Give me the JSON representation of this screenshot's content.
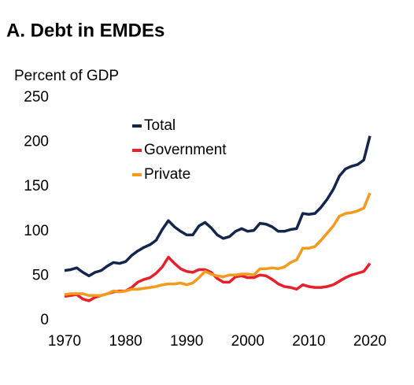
{
  "chart_data": {
    "type": "line",
    "title": "A. Debt in EMDEs",
    "ylabel": "Percent of GDP",
    "x": [
      1970,
      1971,
      1972,
      1973,
      1974,
      1975,
      1976,
      1977,
      1978,
      1979,
      1980,
      1981,
      1982,
      1983,
      1984,
      1985,
      1986,
      1987,
      1988,
      1989,
      1990,
      1991,
      1992,
      1993,
      1994,
      1995,
      1996,
      1997,
      1998,
      1999,
      2000,
      2001,
      2002,
      2003,
      2004,
      2005,
      2006,
      2007,
      2008,
      2009,
      2010,
      2011,
      2012,
      2013,
      2014,
      2015,
      2016,
      2017,
      2018,
      2019,
      2020
    ],
    "series": [
      {
        "name": "Total",
        "color": "#14264d",
        "values": [
          56,
          57,
          59,
          54,
          50,
          54,
          56,
          61,
          65,
          64,
          66,
          73,
          78,
          82,
          85,
          90,
          102,
          112,
          105,
          100,
          96,
          96,
          106,
          110,
          104,
          96,
          92,
          94,
          100,
          103,
          100,
          101,
          109,
          108,
          105,
          100,
          100,
          102,
          103,
          120,
          119,
          120,
          127,
          136,
          147,
          162,
          170,
          173,
          175,
          180,
          207
        ]
      },
      {
        "name": "Government",
        "color": "#e8202a",
        "values": [
          27,
          28,
          29,
          24,
          22,
          26,
          28,
          30,
          32,
          33,
          33,
          37,
          43,
          46,
          48,
          53,
          60,
          71,
          64,
          58,
          55,
          54,
          57,
          57,
          54,
          47,
          43,
          43,
          49,
          50,
          48,
          48,
          51,
          50,
          46,
          41,
          38,
          37,
          35,
          40,
          38,
          37,
          37,
          38,
          40,
          44,
          48,
          51,
          53,
          55,
          64
        ]
      },
      {
        "name": "Private",
        "color": "#f59a1c",
        "values": [
          29,
          30,
          30,
          30,
          28,
          28,
          28,
          30,
          33,
          32,
          33,
          35,
          35,
          36,
          37,
          38,
          40,
          41,
          41,
          42,
          40,
          42,
          48,
          55,
          52,
          50,
          49,
          51,
          51,
          52,
          52,
          51,
          58,
          58,
          59,
          58,
          60,
          65,
          68,
          81,
          81,
          83,
          90,
          98,
          106,
          117,
          120,
          121,
          123,
          126,
          143
        ]
      }
    ],
    "xlim": [
      1970,
      2020
    ],
    "xticks": [
      1970,
      1980,
      1990,
      2000,
      2010,
      2020
    ],
    "ylim": [
      0,
      250
    ],
    "yticks": [
      0,
      50,
      100,
      150,
      200,
      250
    ]
  }
}
